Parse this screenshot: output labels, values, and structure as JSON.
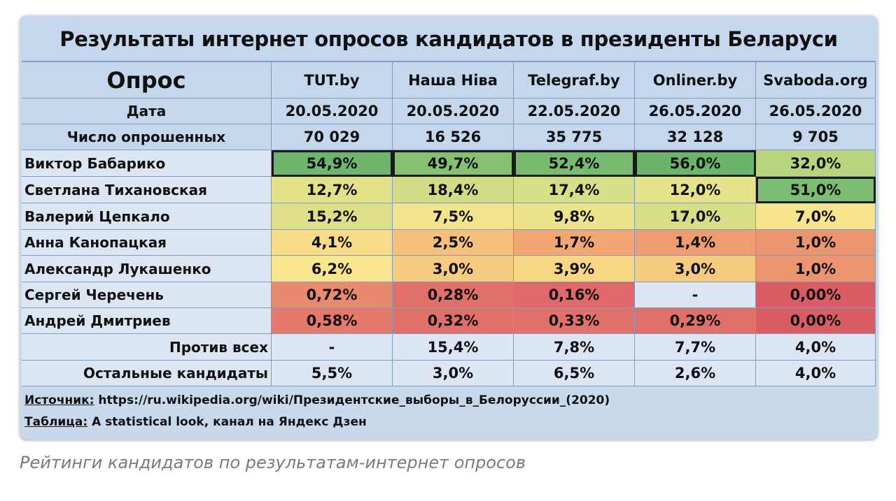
{
  "title": "Результаты интернет опросов кандидатов в президенты Беларуси",
  "caption": "Рейтинги кандидатов по результатам-интернет опросов",
  "header": {
    "poll_label": "Опрос",
    "date_label": "Дата",
    "respondents_label": "Число опрошенных"
  },
  "polls": [
    {
      "name": "TUT.by",
      "date": "20.05.2020",
      "respondents": "70 029"
    },
    {
      "name": "Наша Ніва",
      "date": "20.05.2020",
      "respondents": "16 526"
    },
    {
      "name": "Telegraf.by",
      "date": "22.05.2020",
      "respondents": "35 775"
    },
    {
      "name": "Onliner.by",
      "date": "26.05.2020",
      "respondents": "32 128"
    },
    {
      "name": "Svaboda.org",
      "date": "26.05.2020",
      "respondents": "9 705"
    }
  ],
  "rows": [
    {
      "label": "Виктор Бабарико",
      "values": [
        "54,9%",
        "49,7%",
        "52,4%",
        "56,0%",
        "32,0%"
      ],
      "colors": [
        "#6eb56e",
        "#86c172",
        "#78bb70",
        "#6ab46c",
        "#b7d57d"
      ],
      "highlight": [
        true,
        true,
        true,
        true,
        false
      ]
    },
    {
      "label": "Светлана Тихановская",
      "values": [
        "12,7%",
        "18,4%",
        "17,4%",
        "12,0%",
        "51,0%"
      ],
      "colors": [
        "#e3e28b",
        "#d2dc86",
        "#d6de87",
        "#e5e38c",
        "#7cbd72"
      ],
      "highlight": [
        false,
        false,
        false,
        false,
        true
      ]
    },
    {
      "label": "Валерий Цепкало",
      "values": [
        "15,2%",
        "7,5%",
        "9,8%",
        "17,0%",
        "7,0%"
      ],
      "colors": [
        "#dddf89",
        "#f2e48c",
        "#ece38b",
        "#d8de88",
        "#f6e58d"
      ],
      "highlight": [
        false,
        false,
        false,
        false,
        false
      ]
    },
    {
      "label": "Анна Канопацкая",
      "values": [
        "4,1%",
        "2,5%",
        "1,7%",
        "1,4%",
        "1,0%"
      ],
      "colors": [
        "#f8dc87",
        "#f5c07a",
        "#f2a673",
        "#ee9c70",
        "#ec9470"
      ]
    },
    {
      "label": "Александр Лукашенко",
      "values": [
        "6,2%",
        "3,0%",
        "3,9%",
        "3,0%",
        "1,0%"
      ],
      "colors": [
        "#f9e58d",
        "#f6ca7f",
        "#f7d784",
        "#f6ca7f",
        "#ec9470"
      ]
    },
    {
      "label": "Сергей Черечень",
      "values": [
        "0,72%",
        "0,28%",
        "0,16%",
        "-",
        "0,00%"
      ],
      "colors": [
        "#e98a6e",
        "#e2706a",
        "#e0686a",
        "#dce6f3",
        "#da5d66"
      ]
    },
    {
      "label": "Андрей Дмитриев",
      "values": [
        "0,58%",
        "0,32%",
        "0,33%",
        "0,29%",
        "0,00%"
      ],
      "colors": [
        "#e5796c",
        "#e2706a",
        "#e2716b",
        "#e2706a",
        "#da5d66"
      ]
    }
  ],
  "extra_rows": [
    {
      "label": "Против всех",
      "values": [
        "-",
        "15,4%",
        "7,8%",
        "7,7%",
        "4,0%"
      ]
    },
    {
      "label": "Остальные кандидаты",
      "values": [
        "5,5%",
        "3,0%",
        "6,5%",
        "2,6%",
        "4,0%"
      ]
    }
  ],
  "footer": {
    "source_key": "Источник:",
    "source_value": " https://ru.wikipedia.org/wiki/Президентские_выборы_в_Белоруссии_(2020)",
    "table_key": "Таблица:",
    "table_value": " A statistical look, канал на Яндекс Дзен"
  },
  "colors": {
    "frame": "#c9d9ec",
    "header_cell": "#c5d7ec",
    "plain_cell": "#dce6f3",
    "border": "#7f9bbd"
  },
  "chart_data": {
    "type": "table",
    "title": "Результаты интернет опросов кандидатов в президенты Беларуси",
    "columns": [
      "TUT.by",
      "Наша Ніва",
      "Telegraf.by",
      "Onliner.by",
      "Svaboda.org"
    ],
    "dates": [
      "20.05.2020",
      "20.05.2020",
      "22.05.2020",
      "26.05.2020",
      "26.05.2020"
    ],
    "respondents": [
      70029,
      16526,
      35775,
      32128,
      9705
    ],
    "series": [
      {
        "name": "Виктор Бабарико",
        "values": [
          54.9,
          49.7,
          52.4,
          56.0,
          32.0
        ]
      },
      {
        "name": "Светлана Тихановская",
        "values": [
          12.7,
          18.4,
          17.4,
          12.0,
          51.0
        ]
      },
      {
        "name": "Валерий Цепкало",
        "values": [
          15.2,
          7.5,
          9.8,
          17.0,
          7.0
        ]
      },
      {
        "name": "Анна Канопацкая",
        "values": [
          4.1,
          2.5,
          1.7,
          1.4,
          1.0
        ]
      },
      {
        "name": "Александр Лукашенко",
        "values": [
          6.2,
          3.0,
          3.9,
          3.0,
          1.0
        ]
      },
      {
        "name": "Сергей Черечень",
        "values": [
          0.72,
          0.28,
          0.16,
          null,
          0.0
        ]
      },
      {
        "name": "Андрей Дмитриев",
        "values": [
          0.58,
          0.32,
          0.33,
          0.29,
          0.0
        ]
      },
      {
        "name": "Против всех",
        "values": [
          null,
          15.4,
          7.8,
          7.7,
          4.0
        ]
      },
      {
        "name": "Остальные кандидаты",
        "values": [
          5.5,
          3.0,
          6.5,
          2.6,
          4.0
        ]
      }
    ]
  }
}
